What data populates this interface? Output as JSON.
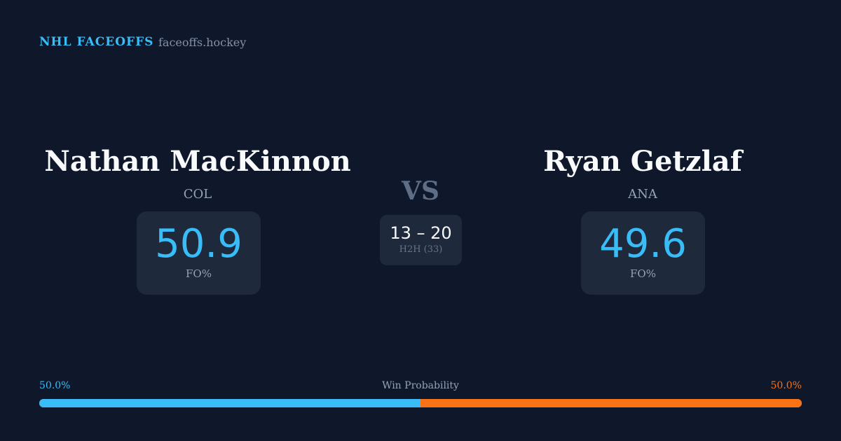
{
  "header": {
    "brand": "NHL FACEOFFS",
    "site": "faceoffs.hockey"
  },
  "left": {
    "name": "Nathan MacKinnon",
    "team": "COL",
    "fo_pct": "50.9",
    "fo_label": "FO%"
  },
  "right": {
    "name": "Ryan Getzlaf",
    "team": "ANA",
    "fo_pct": "49.6",
    "fo_label": "FO%"
  },
  "vs": "VS",
  "h2h": {
    "score": "13 – 20",
    "label": "H2H (33)"
  },
  "win_probability": {
    "label": "Win Probability",
    "left": "50.0%",
    "right": "50.0%",
    "left_fraction": 0.5,
    "colors": {
      "left": "#38bdf8",
      "right": "#f97316"
    }
  }
}
